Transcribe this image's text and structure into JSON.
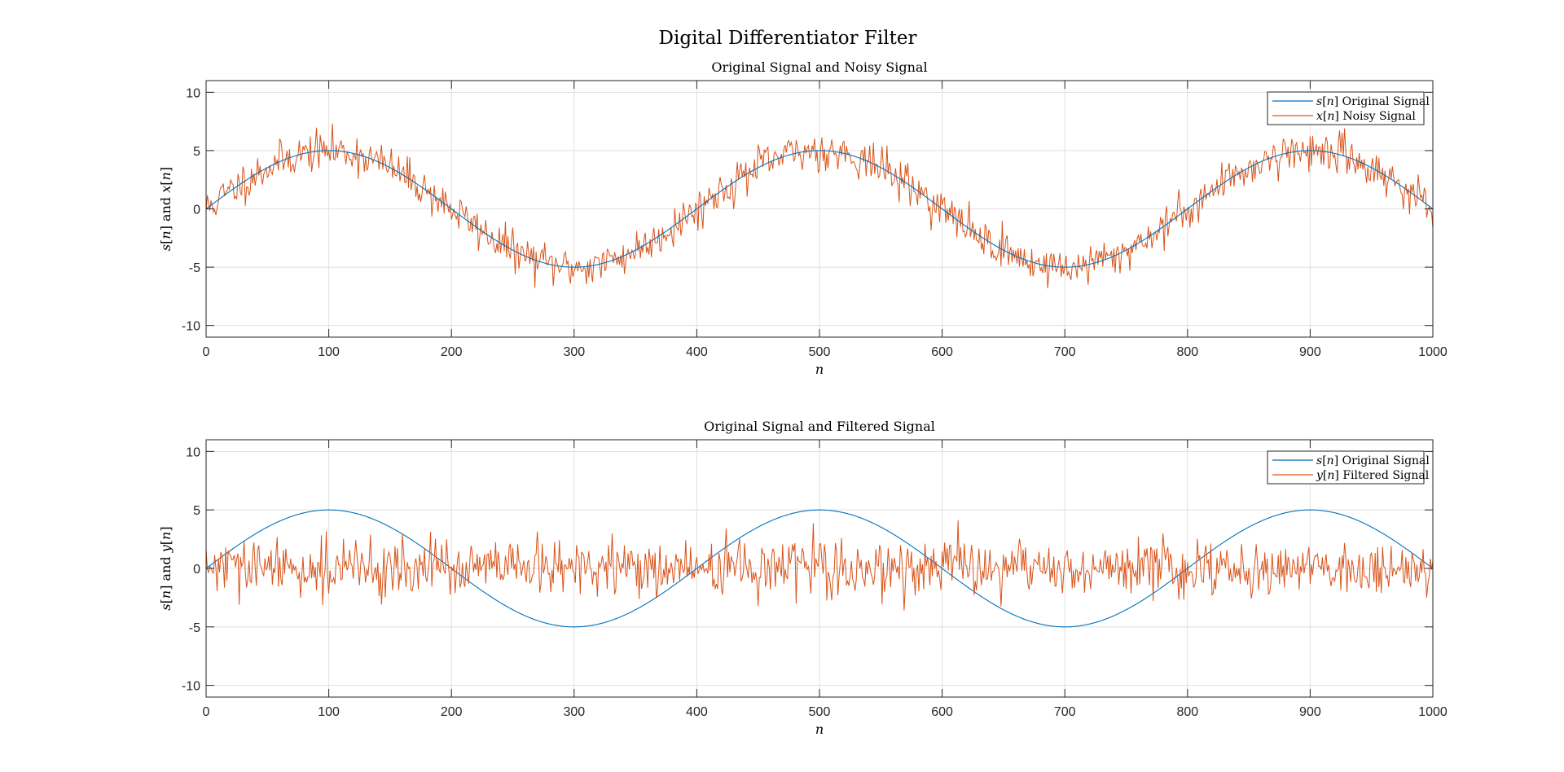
{
  "figure_title": "Digital Differentiator Filter",
  "colors": {
    "original": "#0072BD",
    "noisy": "#D95319",
    "grid": "#dfdfdf",
    "axes": "#262626"
  },
  "chart_data": [
    {
      "type": "line",
      "title": "Original Signal and Noisy Signal",
      "xlabel": "n",
      "ylabel": "s[n] and x[n]",
      "xlim": [
        0,
        1000
      ],
      "ylim": [
        -11,
        11
      ],
      "xticks": [
        0,
        100,
        200,
        300,
        400,
        500,
        600,
        700,
        800,
        900,
        1000
      ],
      "yticks": [
        -10,
        -5,
        0,
        5,
        10
      ],
      "grid": true,
      "legend_position": "top-right",
      "series": [
        {
          "name": "s[n] Original Signal",
          "color": "#0072BD",
          "signal": "5*sin(2*pi*n/400)",
          "samples": "n = 0..1000"
        },
        {
          "name": "x[n] Noisy Signal",
          "color": "#D95319",
          "signal": "s[n] + noise",
          "noise_std_estimate": 0.85,
          "samples": "n = 0..1000"
        }
      ]
    },
    {
      "type": "line",
      "title": "Original Signal and Filtered Signal",
      "xlabel": "n",
      "ylabel": "s[n] and y[n]",
      "xlim": [
        0,
        1000
      ],
      "ylim": [
        -11,
        11
      ],
      "xticks": [
        0,
        100,
        200,
        300,
        400,
        500,
        600,
        700,
        800,
        900,
        1000
      ],
      "yticks": [
        -10,
        -5,
        0,
        5,
        10
      ],
      "grid": true,
      "legend_position": "top-right",
      "series": [
        {
          "name": "s[n] Original Signal",
          "color": "#0072BD",
          "signal": "5*sin(2*pi*n/400)",
          "samples": "n = 0..1000"
        },
        {
          "name": "y[n] Filtered Signal",
          "color": "#D95319",
          "signal": "differentiated noisy signal (zero-mean)",
          "std_estimate": 1.2,
          "approx_range": [
            -4,
            4.3
          ],
          "samples": "n = 0..1000"
        }
      ]
    }
  ]
}
